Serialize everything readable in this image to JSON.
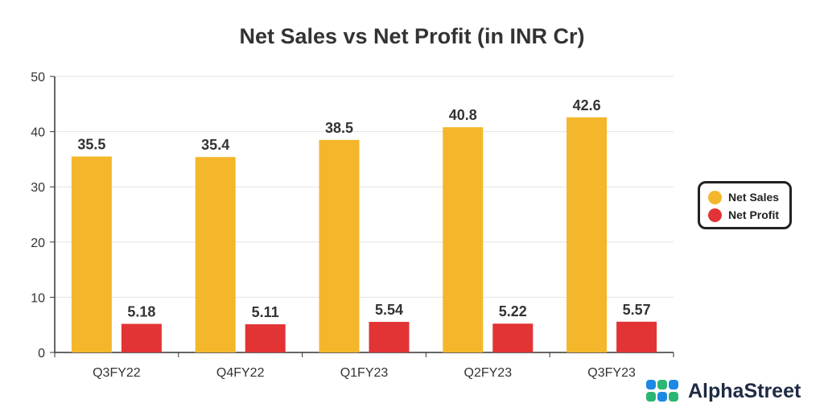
{
  "chart_data": {
    "type": "bar",
    "title": "Net Sales vs Net Profit (in INR Cr)",
    "categories": [
      "Q3FY22",
      "Q4FY22",
      "Q1FY23",
      "Q2FY23",
      "Q3FY23"
    ],
    "series": [
      {
        "name": "Net Sales",
        "values": [
          35.5,
          35.4,
          38.5,
          40.8,
          42.6
        ],
        "labels": [
          "35.5",
          "35.4",
          "38.5",
          "40.8",
          "42.6"
        ],
        "color": "#F4B62A"
      },
      {
        "name": "Net Profit",
        "values": [
          5.18,
          5.11,
          5.54,
          5.22,
          5.57
        ],
        "labels": [
          "5.18",
          "5.11",
          "5.54",
          "5.22",
          "5.57"
        ],
        "color": "#E23434"
      }
    ],
    "ylim": [
      0,
      50
    ],
    "yticks": [
      "0",
      "10",
      "20",
      "30",
      "40",
      "50"
    ],
    "xlabel": "",
    "ylabel": "",
    "grid": true,
    "legend_position": "right"
  },
  "brand": {
    "name": "AlphaStreet",
    "logo_icon": "alphastreet-logo-icon",
    "logo_colors": [
      "#1E88E5",
      "#2BB673"
    ]
  }
}
